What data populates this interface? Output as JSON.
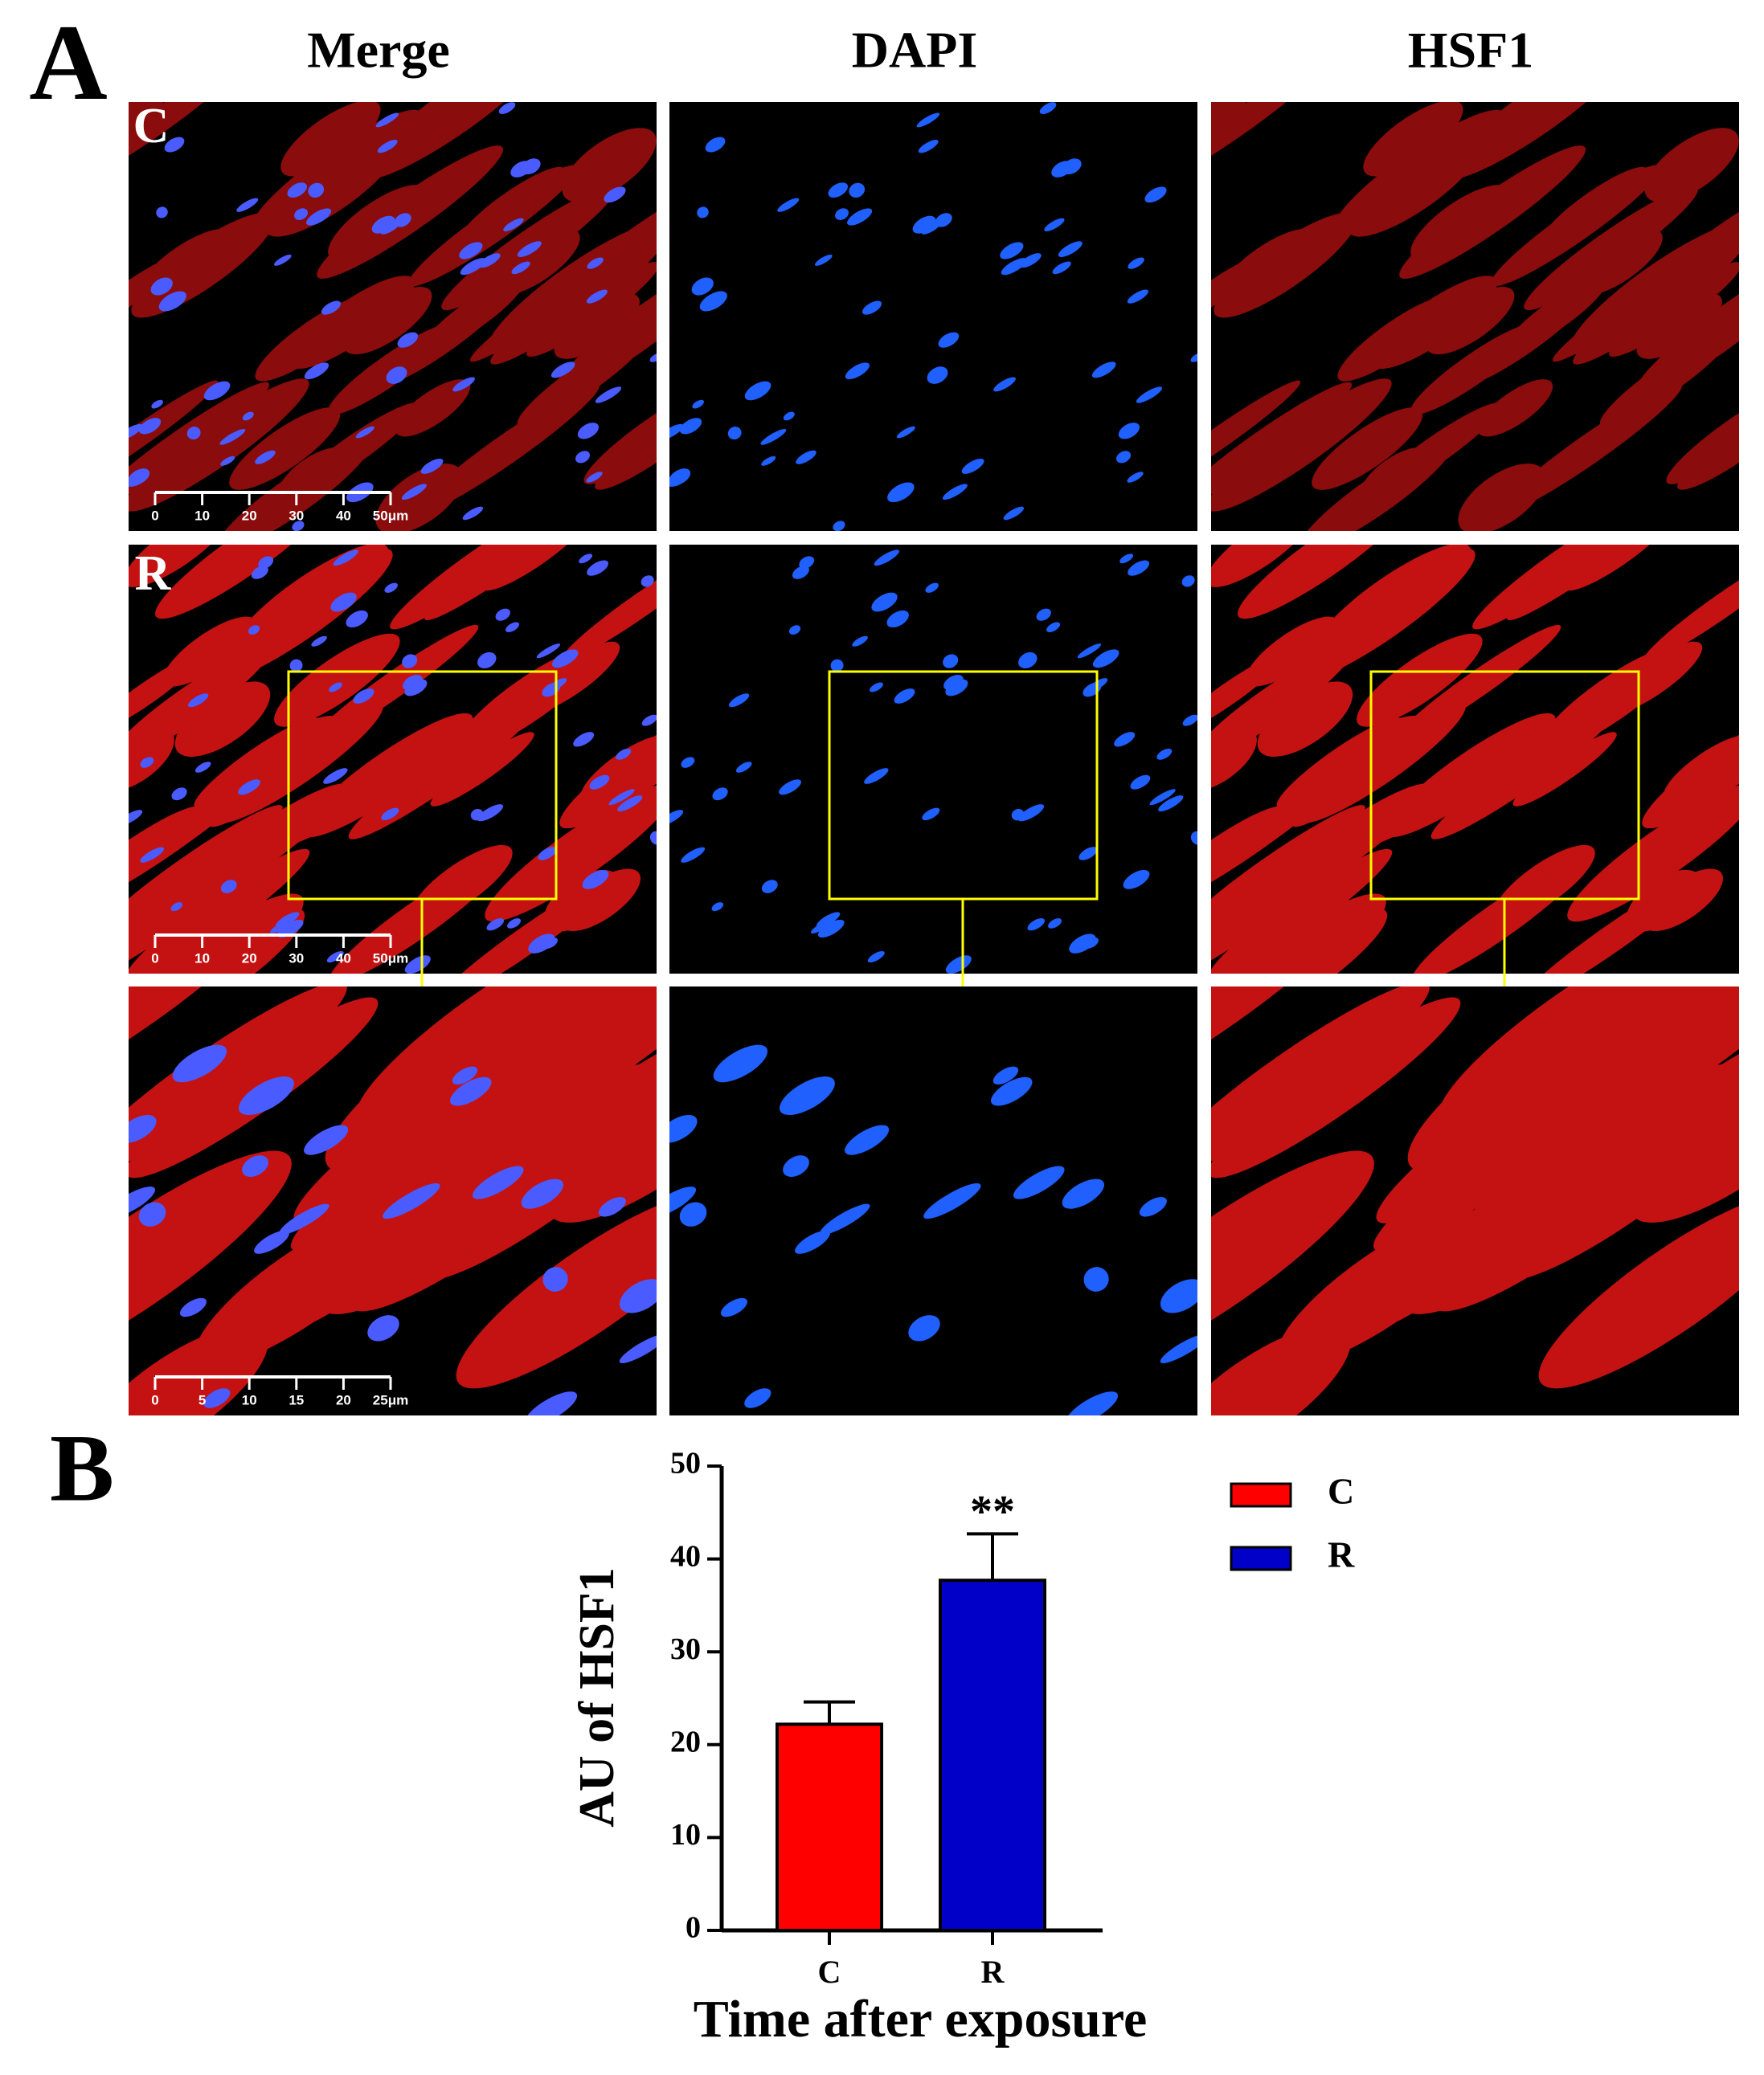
{
  "figure": {
    "panel_labels": [
      "A",
      "B"
    ],
    "columns": [
      "Merge",
      "DAPI",
      "HSF1"
    ],
    "rows": [
      "C",
      "R"
    ],
    "scale_bars": [
      {
        "labels": [
          "0",
          "10",
          "20",
          "30",
          "40",
          "50μm"
        ]
      },
      {
        "labels": [
          "0",
          "10",
          "20",
          "30",
          "40",
          "50μm"
        ]
      },
      {
        "labels": [
          "0",
          "5",
          "10",
          "15",
          "20",
          "25μm"
        ]
      }
    ]
  },
  "chart_data": {
    "type": "bar",
    "x_label": "Time after exposure",
    "y_label": "AU of HSF1",
    "categories": [
      "C",
      "R"
    ],
    "series": [
      {
        "name": "C",
        "color": "#ff0000",
        "values": [
          22.2,
          null
        ],
        "errors": [
          2.4,
          null
        ]
      },
      {
        "name": "R",
        "color": "#0000c8",
        "values": [
          null,
          37.7
        ],
        "errors": [
          null,
          5.0
        ]
      }
    ],
    "annotations": [
      {
        "text": "**"
      }
    ],
    "ylim": [
      0,
      50
    ],
    "yticks": [
      0,
      10,
      20,
      30,
      40,
      50
    ],
    "legend": "right"
  }
}
